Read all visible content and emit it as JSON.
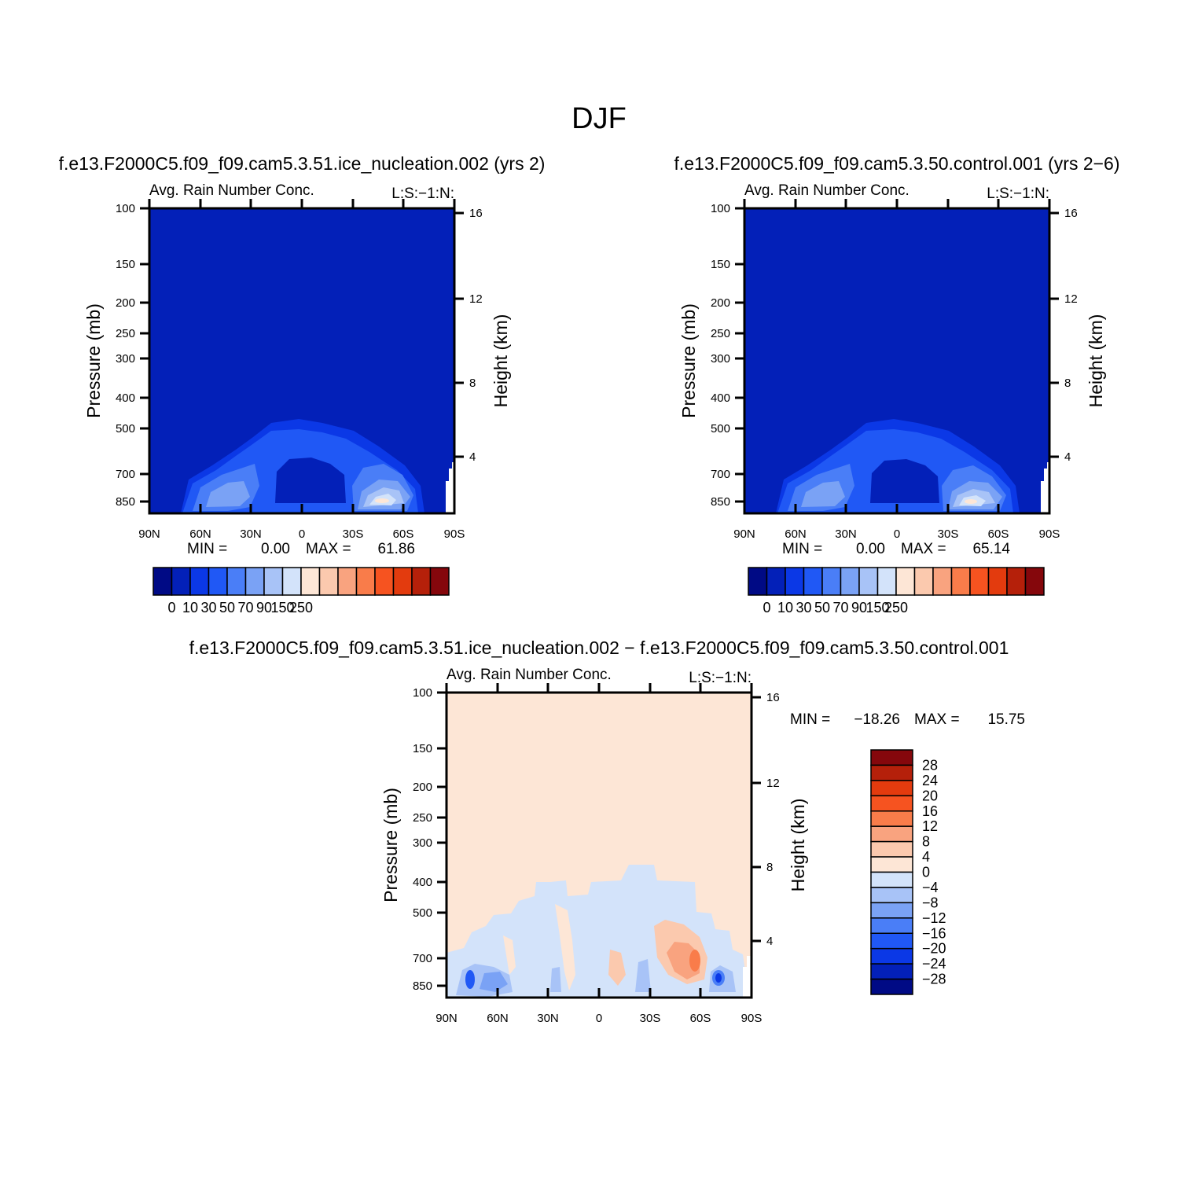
{
  "page_title": "DJF",
  "colors": {
    "field_background_abs": "#0320b8",
    "field_background_diff": "#fde6d6"
  },
  "chart_data": [
    {
      "type": "heatmap",
      "panel": "top-left",
      "title": "f.e13.F2000C5.f09_f09.cam5.3.51.ice_nucleation.002 (yrs 2)",
      "subtitle_left": "Avg. Rain Number Conc.",
      "subtitle_right": "L:S:−1:N:",
      "xlabel": "",
      "ylabel": "Pressure (mb)",
      "y2label": "Height (km)",
      "x_tick_labels": [
        "90N",
        "60N",
        "30N",
        "0",
        "30S",
        "60S",
        "90S"
      ],
      "y_tick_labels": [
        "100",
        "150",
        "200",
        "250",
        "300",
        "400",
        "500",
        "700",
        "850"
      ],
      "y2_tick_labels": [
        "16",
        "12",
        "8",
        "4"
      ],
      "stats": {
        "min_label": "MIN =",
        "min": "0.00",
        "max_label": "MAX =",
        "max": "61.86"
      },
      "colorbar": {
        "orientation": "horizontal",
        "labels": [
          "0",
          "10",
          "30",
          "50",
          "70",
          "90",
          "150",
          "250"
        ],
        "colors": [
          "#000a85",
          "#0320b8",
          "#0b38e6",
          "#2058f5",
          "#4a7ef7",
          "#7aa2f5",
          "#a8c3f7",
          "#d3e3fa",
          "#fde6d6",
          "#fbc9ae",
          "#f9a37f",
          "#f97c4a",
          "#f65320",
          "#e33b0e",
          "#b5200a",
          "#85070c"
        ]
      },
      "blobs": [
        {
          "lat": 0,
          "p_top": 480,
          "color": "#2058f5"
        },
        {
          "lat": 40,
          "p_top": 760,
          "color": "#a8c3f7"
        },
        {
          "lat": 40,
          "p_top": 820,
          "color": "#fde6d6"
        }
      ]
    },
    {
      "type": "heatmap",
      "panel": "top-right",
      "title": "f.e13.F2000C5.f09_f09.cam5.3.50.control.001 (yrs 2−6)",
      "subtitle_left": "Avg. Rain Number Conc.",
      "subtitle_right": "L:S:−1:N:",
      "xlabel": "",
      "ylabel": "Pressure (mb)",
      "y2label": "Height (km)",
      "x_tick_labels": [
        "90N",
        "60N",
        "30N",
        "0",
        "30S",
        "60S",
        "90S"
      ],
      "y_tick_labels": [
        "100",
        "150",
        "200",
        "250",
        "300",
        "400",
        "500",
        "700",
        "850"
      ],
      "y2_tick_labels": [
        "16",
        "12",
        "8",
        "4"
      ],
      "stats": {
        "min_label": "MIN =",
        "min": "0.00",
        "max_label": "MAX =",
        "max": "65.14"
      },
      "colorbar": {
        "orientation": "horizontal",
        "labels": [
          "0",
          "10",
          "30",
          "50",
          "70",
          "90",
          "150",
          "250"
        ],
        "colors": [
          "#000a85",
          "#0320b8",
          "#0b38e6",
          "#2058f5",
          "#4a7ef7",
          "#7aa2f5",
          "#a8c3f7",
          "#d3e3fa",
          "#fde6d6",
          "#fbc9ae",
          "#f9a37f",
          "#f97c4a",
          "#f65320",
          "#e33b0e",
          "#b5200a",
          "#85070c"
        ]
      },
      "blobs": [
        {
          "lat": 0,
          "p_top": 480,
          "color": "#2058f5"
        },
        {
          "lat": 40,
          "p_top": 760,
          "color": "#a8c3f7"
        },
        {
          "lat": 40,
          "p_top": 820,
          "color": "#fde6d6"
        }
      ]
    },
    {
      "type": "heatmap",
      "panel": "bottom",
      "title": "f.e13.F2000C5.f09_f09.cam5.3.51.ice_nucleation.002 − f.e13.F2000C5.f09_f09.cam5.3.50.control.001",
      "subtitle_left": "Avg. Rain Number Conc.",
      "subtitle_right": "L:S:−1:N:",
      "xlabel": "",
      "ylabel": "Pressure (mb)",
      "y2label": "Height (km)",
      "x_tick_labels": [
        "90N",
        "60N",
        "30N",
        "0",
        "30S",
        "60S",
        "90S"
      ],
      "y_tick_labels": [
        "100",
        "150",
        "200",
        "250",
        "300",
        "400",
        "500",
        "700",
        "850"
      ],
      "y2_tick_labels": [
        "16",
        "12",
        "8",
        "4"
      ],
      "stats": {
        "min_label": "MIN =",
        "min": "−18.26",
        "max_label": "MAX =",
        "max": "15.75"
      },
      "colorbar": {
        "orientation": "vertical",
        "labels": [
          "28",
          "24",
          "20",
          "16",
          "12",
          "8",
          "4",
          "0",
          "−4",
          "−8",
          "−12",
          "−16",
          "−20",
          "−24",
          "−28"
        ],
        "colors": [
          "#85070c",
          "#b5200a",
          "#e33b0e",
          "#f65320",
          "#f97c4a",
          "#f9a37f",
          "#fbc9ae",
          "#fde6d6",
          "#d3e3fa",
          "#a8c3f7",
          "#7aa2f5",
          "#4a7ef7",
          "#2058f5",
          "#0b38e6",
          "#0320b8",
          "#000a85"
        ]
      }
    }
  ]
}
